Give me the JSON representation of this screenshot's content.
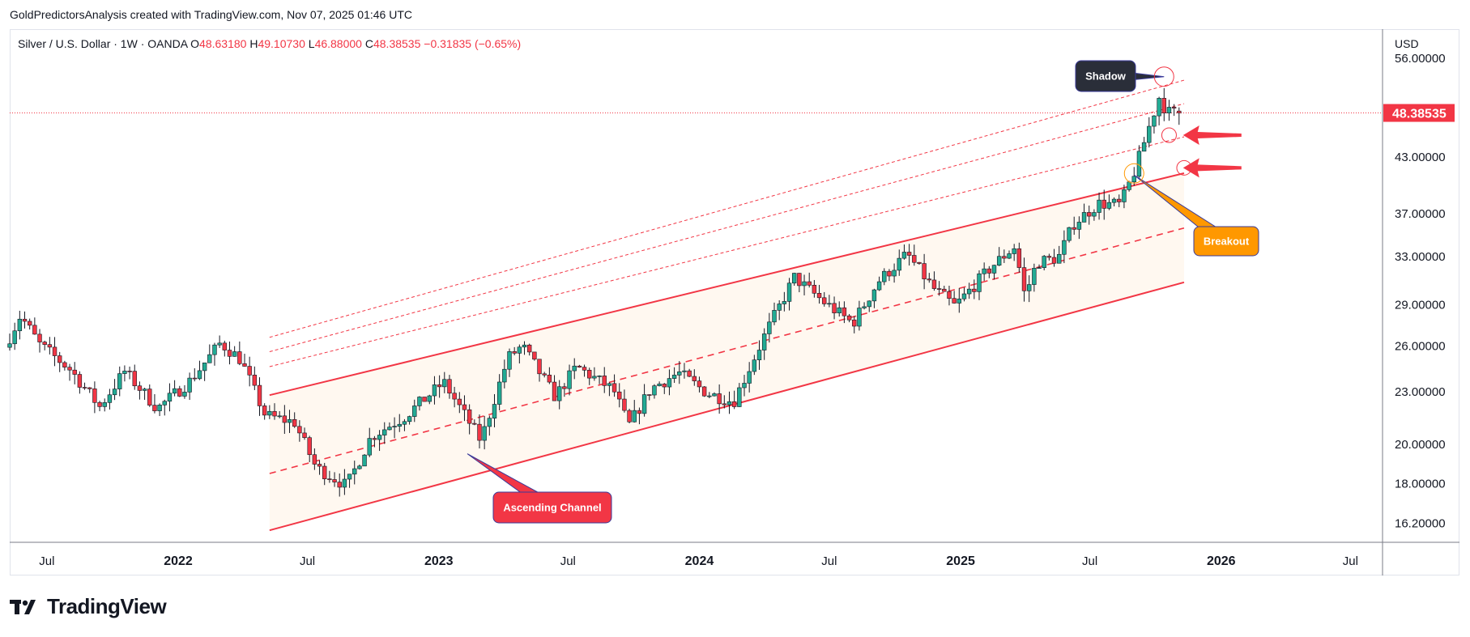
{
  "header": {
    "credit": "GoldPredictorsAnalysis created with TradingView.com, Nov 07, 2025 01:46 UTC"
  },
  "legend": {
    "symbol": "Silver / U.S. Dollar · 1W · OANDA",
    "open_label": "O",
    "open": "48.63180",
    "high_label": "H",
    "high": "49.10730",
    "low_label": "L",
    "low": "46.88000",
    "close_label": "C",
    "close": "48.38535",
    "change": "−0.31835 (−0.65%)"
  },
  "currency": "USD",
  "last_price_label": "48.38535",
  "brand": {
    "name": "TradingView"
  },
  "colors": {
    "up": "#22ab94",
    "down": "#f23645",
    "channel": "#f23645",
    "channel_fill": "#fff8f0",
    "shadow_callout": "#2a2e39",
    "breakout_callout": "#ff9800",
    "channel_callout": "#f23645",
    "arrow": "#f23645"
  },
  "chart_data": {
    "type": "candlestick",
    "symbol": "XAGUSD",
    "timeframe": "1W",
    "y_axis": {
      "scale": "log",
      "ticks": [
        "56.00000",
        "43.00000",
        "37.00000",
        "33.00000",
        "29.00000",
        "26.00000",
        "23.00000",
        "20.00000",
        "18.00000",
        "16.20000"
      ],
      "range": [
        15.4,
        60.5
      ]
    },
    "x_axis": {
      "ticks": [
        {
          "label": "Jul",
          "date": "2021-07-01",
          "bold": false
        },
        {
          "label": "2022",
          "date": "2022-01-01",
          "bold": true
        },
        {
          "label": "Jul",
          "date": "2022-07-01",
          "bold": false
        },
        {
          "label": "2023",
          "date": "2023-01-01",
          "bold": true
        },
        {
          "label": "Jul",
          "date": "2023-07-01",
          "bold": false
        },
        {
          "label": "2024",
          "date": "2024-01-01",
          "bold": true
        },
        {
          "label": "Jul",
          "date": "2024-07-01",
          "bold": false
        },
        {
          "label": "2025",
          "date": "2025-01-01",
          "bold": true
        },
        {
          "label": "Jul",
          "date": "2025-07-01",
          "bold": false
        },
        {
          "label": "2026",
          "date": "2026-01-01",
          "bold": true
        },
        {
          "label": "Jul",
          "date": "2026-07-01",
          "bold": false
        }
      ],
      "range": [
        "2021-05-10",
        "2026-08-15"
      ]
    },
    "anchors": [
      [
        "2021-05-10",
        25.9
      ],
      [
        "2021-06-01",
        28.2
      ],
      [
        "2021-06-28",
        26.1
      ],
      [
        "2021-08-10",
        24.4
      ],
      [
        "2021-09-20",
        22.1
      ],
      [
        "2021-10-25",
        24.3
      ],
      [
        "2021-12-10",
        22.0
      ],
      [
        "2022-01-25",
        23.7
      ],
      [
        "2022-03-08",
        26.2
      ],
      [
        "2022-04-05",
        25.1
      ],
      [
        "2022-05-10",
        21.6
      ],
      [
        "2022-06-20",
        21.2
      ],
      [
        "2022-07-20",
        18.8
      ],
      [
        "2022-09-01",
        17.9
      ],
      [
        "2022-10-05",
        20.4
      ],
      [
        "2022-11-20",
        21.5
      ],
      [
        "2023-01-15",
        23.6
      ],
      [
        "2023-03-08",
        20.2
      ],
      [
        "2023-04-15",
        25.2
      ],
      [
        "2023-05-05",
        26.0
      ],
      [
        "2023-06-20",
        22.7
      ],
      [
        "2023-07-20",
        24.6
      ],
      [
        "2023-09-10",
        23.1
      ],
      [
        "2023-10-01",
        21.0
      ],
      [
        "2023-11-01",
        23.2
      ],
      [
        "2023-12-10",
        24.2
      ],
      [
        "2024-01-20",
        22.9
      ],
      [
        "2024-02-25",
        22.4
      ],
      [
        "2024-04-10",
        26.9
      ],
      [
        "2024-05-20",
        31.2
      ],
      [
        "2024-07-01",
        29.2
      ],
      [
        "2024-08-10",
        27.6
      ],
      [
        "2024-09-15",
        30.9
      ],
      [
        "2024-10-25",
        33.2
      ],
      [
        "2024-12-01",
        30.3
      ],
      [
        "2024-12-31",
        28.9
      ],
      [
        "2025-02-20",
        32.1
      ],
      [
        "2025-03-25",
        33.9
      ],
      [
        "2025-04-08",
        29.7
      ],
      [
        "2025-04-25",
        32.5
      ],
      [
        "2025-05-25",
        32.9
      ],
      [
        "2025-06-15",
        36.0
      ],
      [
        "2025-07-20",
        38.0
      ],
      [
        "2025-08-20",
        37.9
      ],
      [
        "2025-09-10",
        41.7
      ],
      [
        "2025-09-30",
        46.9
      ],
      [
        "2025-10-15",
        51.0
      ],
      [
        "2025-10-22",
        48.5
      ],
      [
        "2025-11-07",
        48.4
      ]
    ],
    "last_candle": {
      "date": "2025-11-03",
      "open": 48.6318,
      "high": 49.1073,
      "low": 46.88,
      "close": 48.38535
    },
    "last_price": 48.38535,
    "channel": {
      "upper": [
        [
          "2022-05-09",
          22.8
        ],
        [
          "2025-11-10",
          41.2
        ]
      ],
      "mid": [
        [
          "2022-05-09",
          18.5
        ],
        [
          "2025-11-10",
          35.6
        ]
      ],
      "lower": [
        [
          "2022-05-09",
          15.9
        ],
        [
          "2025-11-10",
          30.8
        ]
      ],
      "extension_1": [
        [
          "2022-05-09",
          26.6
        ],
        [
          "2025-11-10",
          52.8
        ]
      ],
      "extension_2": [
        [
          "2022-05-09",
          25.6
        ],
        [
          "2025-11-10",
          49.6
        ]
      ],
      "extension_3": [
        [
          "2022-05-09",
          24.6
        ],
        [
          "2025-11-10",
          45.4
        ]
      ]
    },
    "annotations": [
      {
        "text": "Shadow",
        "date": "2025-10-13",
        "price": 53.3
      },
      {
        "text": "Breakout",
        "date": "2025-09-01",
        "price": 41.0
      },
      {
        "text": "Ascending Channel",
        "date": "2023-02-10",
        "price": 19.5
      },
      {
        "marker": "circle",
        "date": "2025-10-20",
        "price": 45.6
      },
      {
        "marker": "circle",
        "date": "2025-11-10",
        "price": 41.8
      },
      {
        "marker": "arrow",
        "date": "2025-11-20",
        "price": 45.6
      },
      {
        "marker": "arrow",
        "date": "2025-11-20",
        "price": 41.8
      }
    ]
  }
}
